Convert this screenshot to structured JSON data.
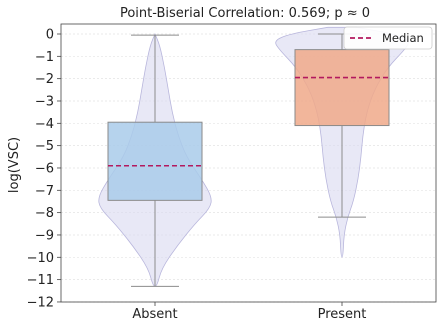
{
  "chart_data": {
    "type": "box",
    "title": "Point-Biserial Correlation: 0.569; p ≈ 0",
    "xlabel": "",
    "ylabel": "log(VSC)",
    "ylim": [
      -12,
      0.5
    ],
    "yticks": [
      0,
      -1,
      -2,
      -3,
      -4,
      -5,
      -6,
      -7,
      -8,
      -9,
      -10,
      -11,
      -12
    ],
    "ytick_labels": [
      "0",
      "−1",
      "−2",
      "−3",
      "−4",
      "−5",
      "−6",
      "−7",
      "−8",
      "−9",
      "−10",
      "−11",
      "−12"
    ],
    "grid": true,
    "legend": {
      "placement": "top-right",
      "entries": [
        {
          "label": "Median",
          "style": "dashed",
          "color": "#b3195e"
        }
      ]
    },
    "categories": [
      "Absent",
      "Present"
    ],
    "boxes": [
      {
        "category": "Absent",
        "q1": -7.45,
        "median": -5.9,
        "q3": -3.95,
        "whisker_low": -11.3,
        "whisker_high": -0.05,
        "fill": "#a9cbea",
        "violin": [
          [
            0.0,
            0.0
          ],
          [
            -0.5,
            0.05
          ],
          [
            -1.5,
            0.1
          ],
          [
            -2.5,
            0.14
          ],
          [
            -3.5,
            0.18
          ],
          [
            -4.5,
            0.24
          ],
          [
            -5.5,
            0.33
          ],
          [
            -6.5,
            0.49
          ],
          [
            -7.3,
            0.6
          ],
          [
            -7.8,
            0.58
          ],
          [
            -8.5,
            0.42
          ],
          [
            -9.5,
            0.23
          ],
          [
            -10.5,
            0.07
          ],
          [
            -11.3,
            0.02
          ]
        ]
      },
      {
        "category": "Present",
        "q1": -4.1,
        "median": -1.95,
        "q3": -0.7,
        "whisker_low": -8.2,
        "whisker_high": 0.0,
        "fill": "#f0a98a",
        "violin": [
          [
            0.3,
            0.15
          ],
          [
            0.0,
            0.55
          ],
          [
            -0.3,
            0.72
          ],
          [
            -0.7,
            0.66
          ],
          [
            -1.5,
            0.48
          ],
          [
            -2.5,
            0.34
          ],
          [
            -3.5,
            0.26
          ],
          [
            -4.5,
            0.22
          ],
          [
            -5.5,
            0.2
          ],
          [
            -6.5,
            0.17
          ],
          [
            -7.5,
            0.12
          ],
          [
            -8.2,
            0.06
          ],
          [
            -9.0,
            0.02
          ],
          [
            -10.0,
            0.01
          ]
        ]
      }
    ],
    "colors": {
      "violin_fill": "#d9d8f0",
      "violin_stroke": "#b8b6dc",
      "whisker": "#8c8c8c",
      "median": "#b3195e"
    }
  }
}
